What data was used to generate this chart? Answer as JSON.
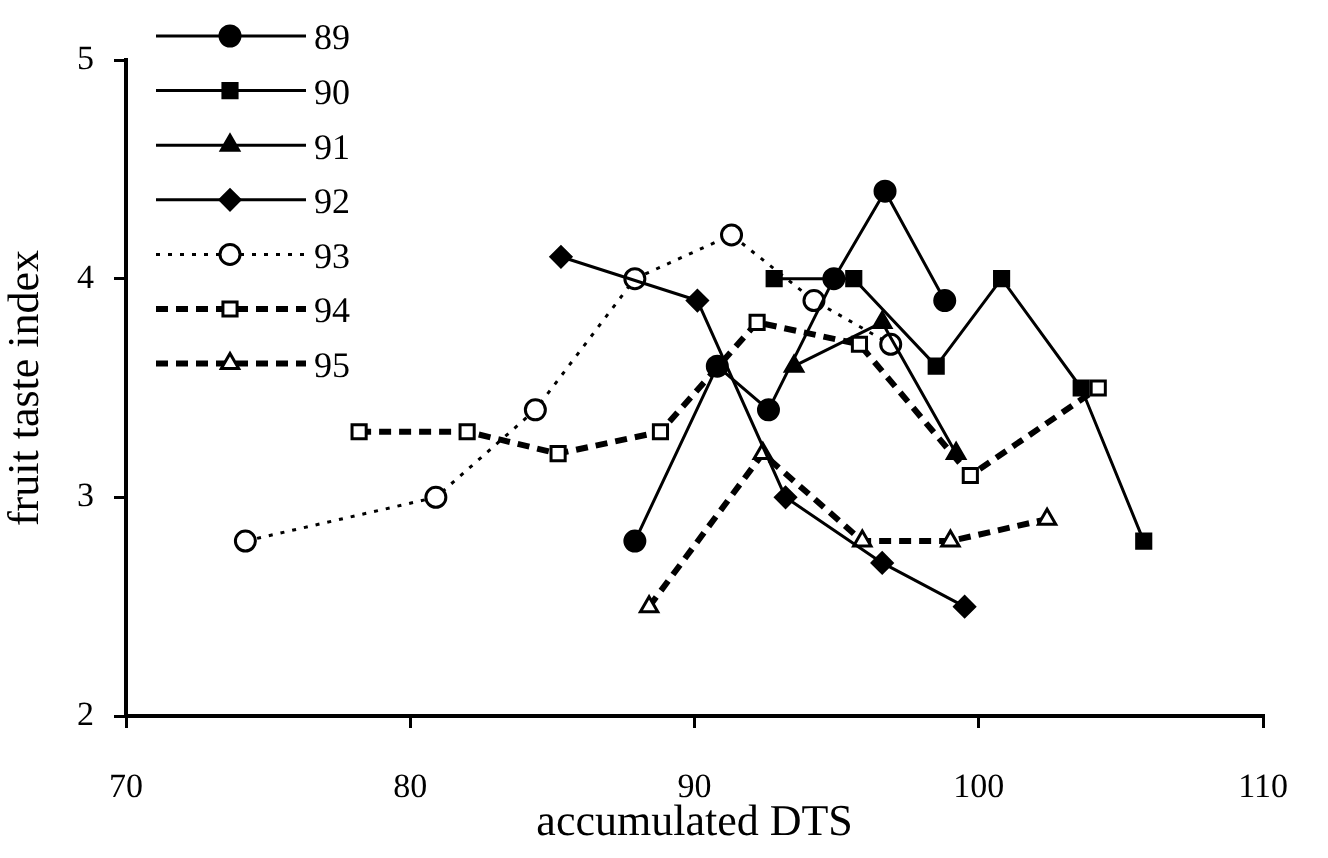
{
  "chart_data": {
    "type": "line",
    "xlabel": "accumulated DTS",
    "ylabel": "fruit taste index",
    "xlim": [
      70,
      110
    ],
    "xticks": [
      70,
      80,
      90,
      100,
      110
    ],
    "ylim": [
      2,
      5
    ],
    "yticks": [
      2,
      3,
      4,
      5
    ],
    "grid": false,
    "legend": "top left",
    "series": [
      {
        "name": "89",
        "color": "#000000",
        "marker": "circle",
        "line_style": "solid",
        "x": [
          87.9,
          90.8,
          92.6,
          94.9,
          96.7,
          98.8
        ],
        "values": [
          2.8,
          3.6,
          3.4,
          4.0,
          4.4,
          3.9
        ]
      },
      {
        "name": "90",
        "color": "#000000",
        "marker": "square",
        "line_style": "solid",
        "x": [
          92.8,
          95.6,
          98.5,
          100.8,
          103.6,
          105.8
        ],
        "values": [
          4.0,
          4.0,
          3.6,
          4.0,
          3.5,
          2.8
        ]
      },
      {
        "name": "91",
        "color": "#000000",
        "marker": "triangle",
        "line_style": "solid",
        "x": [
          93.5,
          96.6,
          99.2
        ],
        "values": [
          3.6,
          3.8,
          3.2
        ]
      },
      {
        "name": "92",
        "color": "#000000",
        "marker": "diamond",
        "line_style": "solid",
        "x": [
          85.3,
          90.1,
          93.2,
          96.6,
          99.5
        ],
        "values": [
          4.1,
          3.9,
          3.0,
          2.7,
          2.5
        ]
      },
      {
        "name": "93",
        "color": "#000000",
        "marker": "circle",
        "line_style": "dotted",
        "x": [
          74.2,
          80.9,
          84.4,
          87.9,
          91.3,
          94.2,
          96.9
        ],
        "values": [
          2.8,
          3.0,
          3.4,
          4.0,
          4.2,
          3.9,
          3.7
        ]
      },
      {
        "name": "94",
        "color": "#000000",
        "marker": "square",
        "line_style": "dashed",
        "x": [
          78.2,
          82.0,
          85.2,
          88.8,
          92.2,
          95.8,
          99.7,
          104.2
        ],
        "values": [
          3.3,
          3.3,
          3.2,
          3.3,
          3.8,
          3.7,
          3.1,
          3.5
        ]
      },
      {
        "name": "95",
        "color": "#000000",
        "marker": "triangle",
        "line_style": "dashed",
        "x": [
          88.4,
          92.4,
          95.9,
          99.0,
          102.4
        ],
        "values": [
          2.5,
          3.2,
          2.8,
          2.8,
          2.9
        ]
      }
    ]
  }
}
